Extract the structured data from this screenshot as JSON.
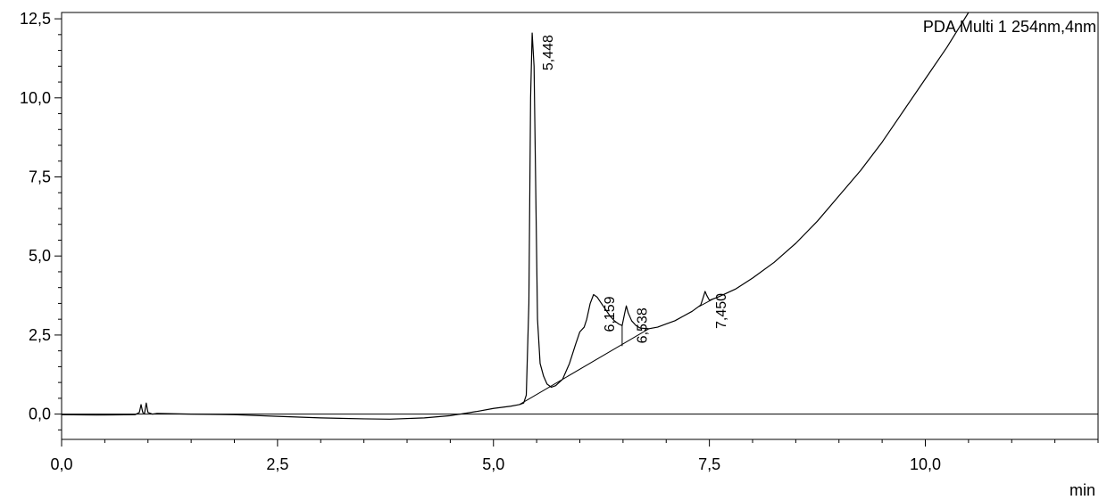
{
  "chart_data": {
    "type": "line",
    "legend": "PDA Multi 1 254nm,4nm",
    "xlabel": "min",
    "ylabel": "",
    "xlim": [
      0.0,
      12.0
    ],
    "ylim": [
      -0.8,
      12.7
    ],
    "x_ticks": [
      {
        "value": 0.0,
        "label": "0,0"
      },
      {
        "value": 2.5,
        "label": "2,5"
      },
      {
        "value": 5.0,
        "label": "5,0"
      },
      {
        "value": 7.5,
        "label": "7,5"
      },
      {
        "value": 10.0,
        "label": "10,0"
      }
    ],
    "y_ticks": [
      {
        "value": 0.0,
        "label": "0,0"
      },
      {
        "value": 2.5,
        "label": "2,5"
      },
      {
        "value": 5.0,
        "label": "5,0"
      },
      {
        "value": 7.5,
        "label": "7,5"
      },
      {
        "value": 10.0,
        "label": "10,0"
      },
      {
        "value": 12.5,
        "label": "12,5"
      }
    ],
    "series": [
      {
        "color": "#000000",
        "points": [
          [
            0.0,
            -0.02
          ],
          [
            0.4,
            -0.03
          ],
          [
            0.85,
            -0.02
          ],
          [
            0.9,
            0.05
          ],
          [
            0.92,
            0.3
          ],
          [
            0.94,
            0.05
          ],
          [
            0.96,
            0.02
          ],
          [
            0.98,
            0.35
          ],
          [
            1.0,
            0.05
          ],
          [
            1.05,
            0.0
          ],
          [
            1.1,
            0.02
          ],
          [
            1.5,
            0.0
          ],
          [
            2.0,
            -0.02
          ],
          [
            2.5,
            -0.07
          ],
          [
            3.0,
            -0.12
          ],
          [
            3.5,
            -0.15
          ],
          [
            3.8,
            -0.16
          ],
          [
            4.2,
            -0.12
          ],
          [
            4.5,
            -0.05
          ],
          [
            4.8,
            0.08
          ],
          [
            5.0,
            0.18
          ],
          [
            5.2,
            0.25
          ],
          [
            5.3,
            0.3
          ],
          [
            5.35,
            0.35
          ],
          [
            5.38,
            0.6
          ],
          [
            5.41,
            3.5
          ],
          [
            5.43,
            10.0
          ],
          [
            5.448,
            12.05
          ],
          [
            5.47,
            11.0
          ],
          [
            5.49,
            7.0
          ],
          [
            5.51,
            3.0
          ],
          [
            5.54,
            1.6
          ],
          [
            5.58,
            1.2
          ],
          [
            5.62,
            0.95
          ],
          [
            5.67,
            0.85
          ],
          [
            5.72,
            0.9
          ],
          [
            5.8,
            1.1
          ],
          [
            5.88,
            1.6
          ],
          [
            5.95,
            2.2
          ],
          [
            6.0,
            2.6
          ],
          [
            6.05,
            2.75
          ],
          [
            6.08,
            3.0
          ],
          [
            6.12,
            3.5
          ],
          [
            6.159,
            3.78
          ],
          [
            6.2,
            3.7
          ],
          [
            6.25,
            3.5
          ],
          [
            6.3,
            3.3
          ],
          [
            6.35,
            3.1
          ],
          [
            6.4,
            2.95
          ],
          [
            6.45,
            2.85
          ],
          [
            6.49,
            2.8
          ],
          [
            6.52,
            3.2
          ],
          [
            6.538,
            3.42
          ],
          [
            6.56,
            3.2
          ],
          [
            6.6,
            2.95
          ],
          [
            6.65,
            2.8
          ],
          [
            6.7,
            2.72
          ],
          [
            6.8,
            2.7
          ],
          [
            6.9,
            2.75
          ],
          [
            7.0,
            2.85
          ],
          [
            7.1,
            2.95
          ],
          [
            7.2,
            3.1
          ],
          [
            7.3,
            3.25
          ],
          [
            7.4,
            3.45
          ],
          [
            7.43,
            3.7
          ],
          [
            7.45,
            3.88
          ],
          [
            7.47,
            3.75
          ],
          [
            7.5,
            3.6
          ],
          [
            7.6,
            3.7
          ],
          [
            7.8,
            3.95
          ],
          [
            8.0,
            4.3
          ],
          [
            8.25,
            4.8
          ],
          [
            8.5,
            5.4
          ],
          [
            8.75,
            6.1
          ],
          [
            9.0,
            6.9
          ],
          [
            9.25,
            7.7
          ],
          [
            9.5,
            8.6
          ],
          [
            9.75,
            9.6
          ],
          [
            10.0,
            10.6
          ],
          [
            10.25,
            11.6
          ],
          [
            10.5,
            12.7
          ]
        ]
      }
    ],
    "baselines": [
      [
        [
          5.3,
          0.3
        ],
        [
          6.8,
          2.7
        ]
      ],
      [
        [
          7.38,
          3.4
        ],
        [
          7.55,
          3.65
        ]
      ]
    ],
    "peak_markers": [
      [
        [
          6.49,
          2.15
        ],
        [
          6.49,
          2.8
        ]
      ]
    ],
    "annotations": [
      {
        "label": "5,448",
        "x": 5.448,
        "y": 12.05
      },
      {
        "label": "6,159",
        "x": 6.159,
        "y": 3.78
      },
      {
        "label": "6,538",
        "x": 6.538,
        "y": 3.42
      },
      {
        "label": "7,450",
        "x": 7.45,
        "y": 3.88
      }
    ]
  }
}
